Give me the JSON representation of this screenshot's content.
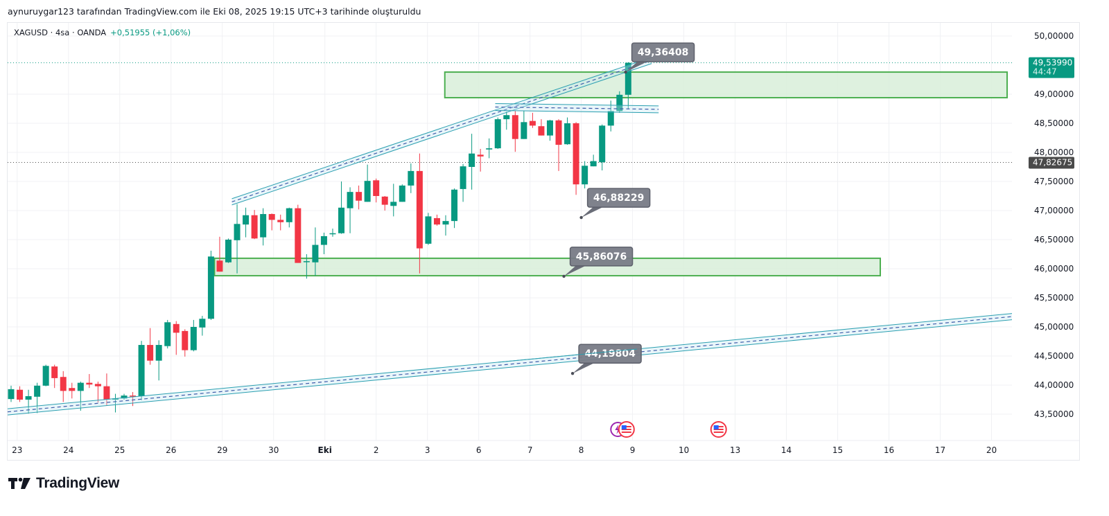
{
  "caption": "aynuruygar123 tarafından TradingView.com ile Eki 08, 2025 19:15 UTC+3 tarihinde oluşturuldu",
  "legend": {
    "symbol": "XAGUSD · 4sa · OANDA",
    "change": "+0,51955 (+1,06%)"
  },
  "brand": {
    "name": "TradingView"
  },
  "colors": {
    "up": "#089981",
    "down": "#f23645",
    "zone_fill": "#d8eed9",
    "zone_border": "#4caf50",
    "channel": "#2a9fb0",
    "callout": "#787b86"
  },
  "chart_data": {
    "type": "candlestick",
    "symbol": "XAGUSD",
    "interval": "4sa",
    "ylim": [
      43.3,
      50.25
    ],
    "y_ticks": [
      {
        "value": 50.0,
        "label": "50,00000"
      },
      {
        "value": 49.0,
        "label": "49,00000"
      },
      {
        "value": 48.5,
        "label": "48,50000"
      },
      {
        "value": 48.0,
        "label": "48,00000"
      },
      {
        "value": 47.5,
        "label": "47,50000"
      },
      {
        "value": 47.0,
        "label": "47,00000"
      },
      {
        "value": 46.5,
        "label": "46,50000"
      },
      {
        "value": 46.0,
        "label": "46,00000"
      },
      {
        "value": 45.5,
        "label": "45,50000"
      },
      {
        "value": 45.0,
        "label": "45,00000"
      },
      {
        "value": 44.5,
        "label": "44,50000"
      },
      {
        "value": 44.0,
        "label": "44,00000"
      },
      {
        "value": 43.5,
        "label": "43,50000"
      }
    ],
    "x_ticks": [
      {
        "index": 0.7,
        "label": "23"
      },
      {
        "index": 6.6,
        "label": "24"
      },
      {
        "index": 12.5,
        "label": "25"
      },
      {
        "index": 18.4,
        "label": "26"
      },
      {
        "index": 24.3,
        "label": "29"
      },
      {
        "index": 30.2,
        "label": "30"
      },
      {
        "index": 36.1,
        "label": "Eki",
        "bold": true
      },
      {
        "index": 42.0,
        "label": "2"
      },
      {
        "index": 47.9,
        "label": "3"
      },
      {
        "index": 53.8,
        "label": "6"
      },
      {
        "index": 59.7,
        "label": "7"
      },
      {
        "index": 65.6,
        "label": "8"
      },
      {
        "index": 71.5,
        "label": "9"
      },
      {
        "index": 77.4,
        "label": "10"
      },
      {
        "index": 83.3,
        "label": "13"
      },
      {
        "index": 89.2,
        "label": "14"
      },
      {
        "index": 95.1,
        "label": "15"
      },
      {
        "index": 101.0,
        "label": "16"
      },
      {
        "index": 106.9,
        "label": "17"
      },
      {
        "index": 112.8,
        "label": "20"
      }
    ],
    "candles": [
      [
        43.76,
        43.93,
        43.99,
        43.71
      ],
      [
        43.92,
        43.75,
        43.98,
        43.71
      ],
      [
        43.75,
        43.81,
        43.92,
        43.51
      ],
      [
        43.8,
        43.99,
        44.04,
        43.52
      ],
      [
        43.99,
        44.33,
        44.35,
        43.98
      ],
      [
        44.32,
        44.12,
        44.35,
        43.95
      ],
      [
        44.14,
        43.9,
        44.24,
        43.71
      ],
      [
        43.95,
        43.9,
        44.04,
        43.77
      ],
      [
        43.9,
        44.04,
        44.06,
        43.56
      ],
      [
        44.04,
        44.01,
        44.19,
        43.95
      ],
      [
        44.02,
        43.98,
        44.06,
        43.7
      ],
      [
        43.98,
        43.75,
        44.2,
        43.65
      ],
      [
        43.75,
        43.77,
        43.85,
        43.53
      ],
      [
        43.77,
        43.82,
        43.85,
        43.75
      ],
      [
        43.82,
        43.81,
        43.88,
        43.64
      ],
      [
        43.81,
        44.69,
        44.76,
        43.74
      ],
      [
        44.69,
        44.42,
        44.98,
        44.35
      ],
      [
        44.42,
        44.69,
        44.77,
        44.08
      ],
      [
        44.67,
        45.08,
        45.12,
        44.63
      ],
      [
        45.05,
        44.9,
        45.1,
        44.52
      ],
      [
        44.93,
        44.6,
        44.96,
        44.49
      ],
      [
        44.6,
        45.0,
        45.12,
        44.58
      ],
      [
        44.99,
        45.14,
        45.19,
        44.85
      ],
      [
        45.14,
        46.21,
        46.31,
        45.12
      ],
      [
        46.14,
        45.95,
        46.55,
        45.95
      ],
      [
        46.11,
        46.5,
        46.52,
        46.1
      ],
      [
        46.49,
        46.77,
        47.11,
        45.92
      ],
      [
        46.76,
        46.92,
        47.05,
        46.54
      ],
      [
        46.92,
        46.52,
        47.01,
        46.51
      ],
      [
        46.54,
        46.94,
        47.04,
        46.4
      ],
      [
        46.94,
        46.84,
        46.95,
        46.66
      ],
      [
        46.84,
        46.8,
        46.93,
        46.66
      ],
      [
        46.8,
        47.04,
        47.05,
        46.71
      ],
      [
        47.04,
        46.1,
        47.1,
        46.1
      ],
      [
        46.12,
        46.13,
        46.25,
        45.83
      ],
      [
        46.11,
        46.41,
        46.71,
        45.88
      ],
      [
        46.41,
        46.56,
        46.62,
        46.25
      ],
      [
        46.6,
        46.61,
        46.69,
        46.55
      ],
      [
        46.61,
        47.05,
        47.5,
        46.6
      ],
      [
        47.04,
        47.32,
        47.4,
        46.61
      ],
      [
        47.32,
        47.17,
        47.43,
        47.02
      ],
      [
        47.15,
        47.51,
        47.79,
        47.15
      ],
      [
        47.52,
        47.25,
        47.55,
        47.14
      ],
      [
        47.24,
        47.1,
        47.25,
        47.0
      ],
      [
        47.08,
        47.15,
        47.46,
        46.9
      ],
      [
        47.15,
        47.43,
        47.45,
        47.15
      ],
      [
        47.43,
        47.68,
        47.81,
        47.3
      ],
      [
        47.68,
        46.35,
        47.98,
        45.92
      ],
      [
        46.43,
        46.9,
        46.96,
        46.41
      ],
      [
        46.87,
        46.76,
        46.93,
        46.74
      ],
      [
        46.76,
        46.82,
        46.92,
        46.57
      ],
      [
        46.82,
        47.36,
        47.38,
        46.7
      ],
      [
        47.37,
        47.76,
        47.8,
        47.15
      ],
      [
        47.75,
        47.98,
        48.32,
        47.36
      ],
      [
        47.96,
        47.93,
        48.06,
        47.67
      ],
      [
        48.05,
        48.07,
        48.24,
        47.9
      ],
      [
        48.07,
        48.57,
        48.6,
        48.06
      ],
      [
        48.57,
        48.64,
        48.7,
        48.39
      ],
      [
        48.64,
        48.23,
        48.71,
        48.01
      ],
      [
        48.23,
        48.52,
        48.71,
        48.23
      ],
      [
        48.54,
        48.46,
        48.68,
        48.42
      ],
      [
        48.45,
        48.29,
        48.57,
        48.29
      ],
      [
        48.29,
        48.55,
        48.56,
        48.2
      ],
      [
        48.55,
        48.13,
        48.57,
        47.68
      ],
      [
        48.14,
        48.5,
        48.6,
        48.13
      ],
      [
        48.5,
        47.45,
        48.52,
        47.27
      ],
      [
        47.45,
        47.77,
        47.85,
        47.38
      ],
      [
        47.76,
        47.85,
        47.96,
        47.76
      ],
      [
        47.83,
        48.46,
        48.48,
        47.69
      ],
      [
        48.46,
        48.71,
        48.89,
        48.36
      ],
      [
        48.71,
        48.99,
        49.05,
        48.68
      ],
      [
        48.99,
        49.54,
        49.55,
        48.75
      ]
    ],
    "candle_format": [
      "open",
      "close",
      "high",
      "low"
    ],
    "price_lines": [
      {
        "value": 49.5399,
        "label": "49,53990",
        "sublabel": "44:47",
        "color": "#089981",
        "style": "last"
      },
      {
        "value": 47.82675,
        "label": "47,82675",
        "color": "#4a4a4a",
        "style": "mark"
      }
    ],
    "zones": [
      {
        "name": "upper-resistance-zone",
        "from_index": 49.9,
        "to_index": 114.8,
        "top": 49.38,
        "bottom": 48.94
      },
      {
        "name": "lower-support-zone",
        "from_index": 23.4,
        "to_index": 100.0,
        "top": 46.18,
        "bottom": 45.88
      }
    ],
    "channels": [
      {
        "name": "rising-channel-upper",
        "from": [
          25.4,
          47.15
        ],
        "to": [
          73.7,
          49.58
        ]
      },
      {
        "name": "horizontal-channel",
        "from": [
          55.7,
          48.78
        ],
        "to": [
          74.5,
          48.74
        ]
      },
      {
        "name": "long-trendline",
        "from": [
          -0.4,
          43.54
        ],
        "to": [
          123.8,
          45.3
        ]
      }
    ],
    "callouts": [
      {
        "text": "49,36408",
        "index": 70.7,
        "price": 49.38
      },
      {
        "text": "46,88229",
        "index": 65.6,
        "price": 46.88
      },
      {
        "text": "45,86076",
        "index": 63.6,
        "price": 45.87
      },
      {
        "text": "44,19804",
        "index": 64.6,
        "price": 44.2
      }
    ],
    "events": [
      {
        "type": "earnings-icon",
        "index": 69.8
      },
      {
        "type": "us-flag-icon",
        "index": 70.8
      },
      {
        "type": "us-flag-icon",
        "index": 81.4
      }
    ]
  }
}
